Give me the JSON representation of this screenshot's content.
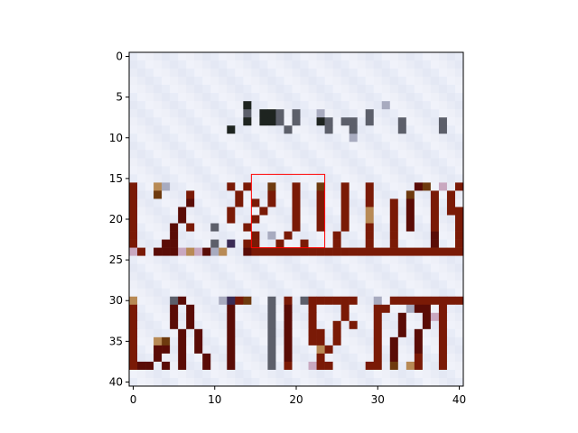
{
  "chart_data": {
    "type": "heatmap",
    "title": "",
    "xlabel": "",
    "ylabel": "",
    "grid_size": [
      41,
      41
    ],
    "xlim": [
      -0.5,
      40.5
    ],
    "ylim": [
      40.5,
      -0.5
    ],
    "x_ticks": [
      0,
      10,
      20,
      30,
      40
    ],
    "y_ticks": [
      0,
      5,
      10,
      15,
      20,
      25,
      30,
      35,
      40
    ],
    "x_tick_labels": [
      "0",
      "10",
      "20",
      "30",
      "40"
    ],
    "y_tick_labels": [
      "0",
      "5",
      "10",
      "15",
      "20",
      "25",
      "30",
      "35",
      "40"
    ],
    "grid": false,
    "background_color": "#eceff9",
    "palette": {
      "D": "#5a0c06",
      "R": "#7a1a06",
      "B": "#6e3a0e",
      "T": "#b88a55",
      "G": "#5c5f6a",
      "K": "#1e2420",
      "P": "#c9a8c0",
      "V": "#3a2b55",
      "L": "#a8abbf"
    },
    "image_rows": [
      ".........................................",
      ".........................................",
      ".........................................",
      ".........................................",
      ".........................................",
      ".........................................",
      "..............K................L.........",
      "..............G.KKG.G..L.....G...........",
      "..............K.KKG.G..KG.GG.G...G....G..",
      "............K......G....G..G.....G....G..",
      "...........................L.............",
      ".........................................",
      ".........................................",
      ".........................................",
      ".........................................",
      ".........................................",
      "R..TL.......R.R..B..R..B..R..R.....DB.P.R",
      "R..B...R.....R...R..R..R..R..R....B..R.R.",
      "R......D.....R.R.R..R..R..R..R..R.D..R.R.",
      "R.....D.....R...R...R..R..R..T..R.D..R.RR",
      "R.....D.....R..R....R..R..R..T..R.D..R..R",
      "R....D.R..G...R.....R..R..R..R..R.D..R..R",
      "R....D.........R.L.R.....R...R..R....D..R",
      "R...DD....G.V.RR..R..R...R...R..R....D..R",
      "PR.DDDPTPDLT..DRRRRRRRRRRRRRRRRRRRRRRRRRR",
      ".........................................",
      ".........................................",
      ".........................................",
      ".........................................",
      ".........................................",
      "T....GD....LVRB..G.R.GRRRRRR..L.RRRRRRRRR",
      "R....D.D....D....G.D..R...R...RR..LDD.R..",
      "R....D.D....D....G.D..R...R...R..D..DPR..",
      "R....D.D....D....G.D..R..R.R..R..D..D.R..",
      "R.....D.D...D....G.D..RR.R....R..D.D..R..",
      "R..TB.D.D...D....G.D..RR.R....R.D..D..R..",
      "R..DD.D.D...D....G.D...TR.....R.D..D..R..",
      "R..D..D..D..D....G.D...R......R.D..R..R..",
      "RDD.D.D..D..D....G.R..PRR....RR.B.TR..R..",
      ".........................................",
      "........................................."
    ],
    "annotations": [
      {
        "type": "rectangle",
        "x_range": [
          14.5,
          23.5
        ],
        "y_range": [
          14.5,
          23.5
        ],
        "edge_color": "#ff0000",
        "fill": "none"
      }
    ]
  }
}
